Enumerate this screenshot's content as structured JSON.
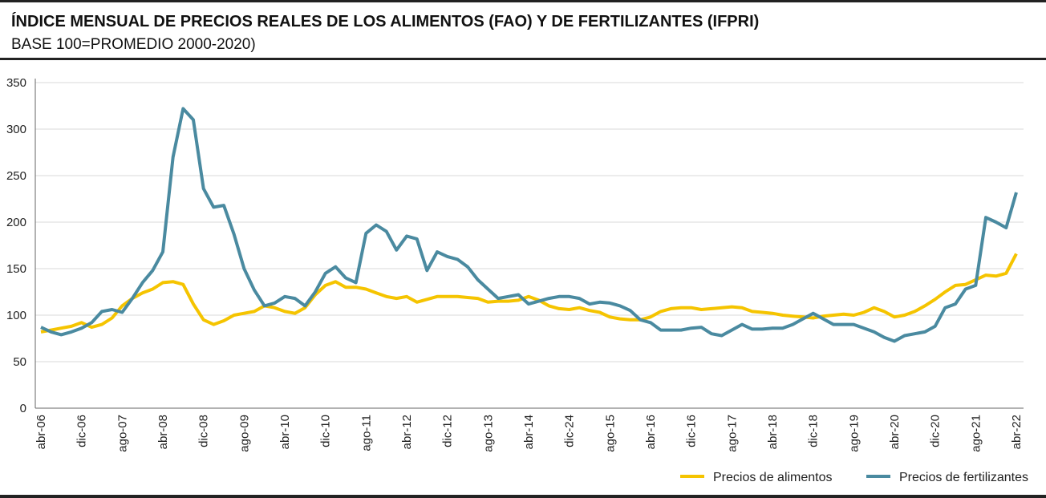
{
  "chart_data": {
    "type": "line",
    "title": "ÍNDICE MENSUAL DE PRECIOS REALES DE LOS ALIMENTOS (FAO) Y DE FERTILIZANTES (IFPRI)",
    "subtitle": "BASE 100=PROMEDIO 2000-2020)",
    "categories": [
      "abr-06",
      null,
      null,
      null,
      "dic-06",
      null,
      null,
      null,
      "ago-07",
      null,
      null,
      null,
      "abr-08",
      null,
      null,
      null,
      "dic-08",
      null,
      null,
      null,
      "ago-09",
      null,
      null,
      null,
      "abr-10",
      null,
      null,
      null,
      "dic-10",
      null,
      null,
      null,
      "ago-11",
      null,
      null,
      null,
      "abr-12",
      null,
      null,
      null,
      "dic-12",
      null,
      null,
      null,
      "ago-13",
      null,
      null,
      null,
      "abr-14",
      null,
      null,
      null,
      "dic-24",
      null,
      null,
      null,
      "ago-15",
      null,
      null,
      null,
      "abr-16",
      null,
      null,
      null,
      "dic-16",
      null,
      null,
      null,
      "ago-17",
      null,
      null,
      null,
      "abr-18",
      null,
      null,
      null,
      "dic-18",
      null,
      null,
      null,
      "ago-19",
      null,
      null,
      null,
      "abr-20",
      null,
      null,
      null,
      "dic-20",
      null,
      null,
      null,
      "ago-21",
      null,
      null,
      null,
      "abr-22"
    ],
    "series": [
      {
        "name": "Precios de alimentos",
        "color": "#f5c400",
        "values": [
          82,
          84,
          86,
          88,
          92,
          87,
          90,
          97,
          110,
          118,
          124,
          128,
          135,
          136,
          133,
          112,
          95,
          90,
          94,
          100,
          102,
          104,
          110,
          108,
          104,
          102,
          108,
          122,
          132,
          136,
          130,
          130,
          128,
          124,
          120,
          118,
          120,
          114,
          117,
          120,
          120,
          120,
          119,
          118,
          114,
          115,
          115,
          116,
          120,
          116,
          110,
          107,
          106,
          108,
          105,
          103,
          98,
          96,
          95,
          95,
          98,
          104,
          107,
          108,
          108,
          106,
          107,
          108,
          109,
          108,
          104,
          103,
          102,
          100,
          99,
          98,
          97,
          99,
          100,
          101,
          100,
          103,
          108,
          104,
          98,
          100,
          104,
          110,
          117,
          125,
          132,
          133,
          138,
          143,
          142,
          145,
          166
        ]
      },
      {
        "name": "Precios de fertilizantes",
        "color": "#4a8aa0",
        "values": [
          87,
          82,
          79,
          82,
          86,
          92,
          104,
          106,
          103,
          118,
          135,
          148,
          168,
          270,
          322,
          310,
          236,
          216,
          218,
          187,
          150,
          127,
          110,
          113,
          120,
          118,
          110,
          125,
          145,
          152,
          140,
          135,
          188,
          197,
          190,
          170,
          185,
          182,
          148,
          168,
          163,
          160,
          152,
          138,
          128,
          118,
          120,
          122,
          112,
          115,
          118,
          120,
          120,
          118,
          112,
          114,
          113,
          110,
          105,
          95,
          92,
          84,
          84,
          84,
          86,
          87,
          80,
          78,
          84,
          90,
          85,
          85,
          86,
          86,
          90,
          96,
          102,
          96,
          90,
          90,
          90,
          86,
          82,
          76,
          72,
          78,
          80,
          82,
          88,
          108,
          112,
          128,
          132,
          205,
          200,
          194,
          232
        ]
      }
    ],
    "ylim": [
      0,
      350
    ],
    "yticks": [
      0,
      50,
      100,
      150,
      200,
      250,
      300,
      350
    ],
    "grid": true,
    "legend": "bottom-right"
  }
}
